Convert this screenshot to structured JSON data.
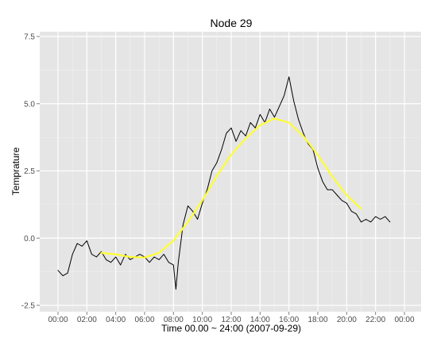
{
  "chart_data": {
    "type": "line",
    "title": "Node 29",
    "xlabel": "Time 00.00 ~ 24:00 (2007-09-29)",
    "ylabel": "Temprature",
    "xlim": [
      "00:00",
      "24:00"
    ],
    "ylim": [
      -2.5,
      7.5
    ],
    "x_ticks": [
      "00:00",
      "02:00",
      "04:00",
      "06:00",
      "08:00",
      "10:00",
      "12:00",
      "14:00",
      "16:00",
      "18:00",
      "20:00",
      "22:00",
      "00:00"
    ],
    "y_ticks": [
      "-2.5",
      "0.0",
      "2.5",
      "5.0",
      "7.5"
    ],
    "y_tick_values": [
      -2.5,
      0.0,
      2.5,
      5.0,
      7.5
    ],
    "grid": true,
    "background": "#e5e5e5",
    "series": [
      {
        "color": "#000000",
        "x": [
          "00:00",
          "00:20",
          "00:40",
          "01:00",
          "01:20",
          "01:40",
          "02:00",
          "02:20",
          "02:40",
          "03:00",
          "03:20",
          "03:40",
          "04:00",
          "04:20",
          "04:40",
          "05:00",
          "05:20",
          "05:40",
          "06:00",
          "06:20",
          "06:40",
          "07:00",
          "07:20",
          "07:40",
          "08:00",
          "08:10",
          "08:20",
          "08:40",
          "09:00",
          "09:20",
          "09:40",
          "10:00",
          "10:20",
          "10:40",
          "11:00",
          "11:20",
          "11:40",
          "12:00",
          "12:20",
          "12:40",
          "13:00",
          "13:20",
          "13:40",
          "14:00",
          "14:20",
          "14:40",
          "15:00",
          "15:20",
          "15:40",
          "16:00",
          "16:20",
          "16:40",
          "17:00",
          "17:20",
          "17:40",
          "18:00",
          "18:20",
          "18:40",
          "19:00",
          "19:20",
          "19:40",
          "20:00",
          "20:20",
          "20:40",
          "21:00",
          "21:20",
          "21:40",
          "22:00",
          "22:20",
          "22:40",
          "23:00"
        ],
        "values": [
          -1.2,
          -1.4,
          -1.3,
          -0.6,
          -0.2,
          -0.3,
          -0.1,
          -0.6,
          -0.7,
          -0.5,
          -0.8,
          -0.9,
          -0.7,
          -1.0,
          -0.6,
          -0.8,
          -0.7,
          -0.6,
          -0.7,
          -0.9,
          -0.7,
          -0.8,
          -0.6,
          -0.9,
          -1.0,
          -1.9,
          -0.9,
          0.5,
          1.2,
          1.0,
          0.7,
          1.3,
          1.8,
          2.5,
          2.8,
          3.3,
          3.9,
          4.1,
          3.6,
          4.0,
          3.8,
          4.3,
          4.1,
          4.6,
          4.3,
          4.8,
          4.5,
          4.9,
          5.3,
          6.0,
          5.1,
          4.4,
          3.9,
          3.5,
          3.3,
          2.6,
          2.1,
          1.8,
          1.8,
          1.6,
          1.4,
          1.3,
          1.0,
          0.9,
          0.6,
          0.7,
          0.6,
          0.8,
          0.7,
          0.8,
          0.6
        ]
      },
      {
        "color": "#ffff33",
        "x": [
          "03:00",
          "04:00",
          "05:00",
          "06:00",
          "07:00",
          "08:00",
          "09:00",
          "10:00",
          "11:00",
          "12:00",
          "13:00",
          "14:00",
          "15:00",
          "16:00",
          "17:00",
          "18:00",
          "19:00",
          "20:00",
          "21:00"
        ],
        "values": [
          -0.55,
          -0.6,
          -0.7,
          -0.72,
          -0.55,
          -0.1,
          0.6,
          1.4,
          2.3,
          3.1,
          3.7,
          4.2,
          4.45,
          4.3,
          3.8,
          3.1,
          2.3,
          1.6,
          1.1
        ]
      }
    ]
  }
}
